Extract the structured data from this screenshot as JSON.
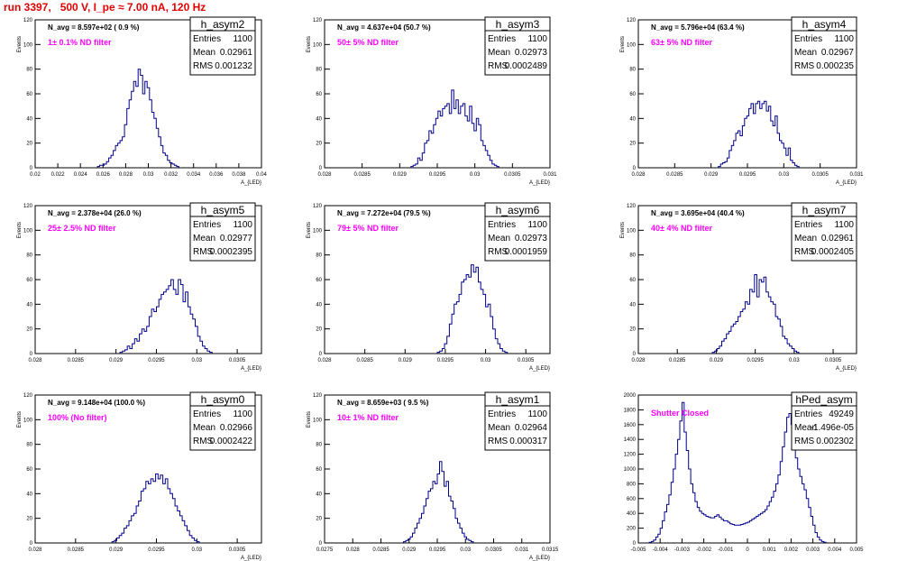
{
  "header": {
    "run_title": "run 3397,   500 V, I_pe ≈ 7.00 nA, 120 Hz"
  },
  "colors": {
    "histogram": "#00008b",
    "note_default": "#ff00ff",
    "note_shutter": "#ff00ff",
    "title": "#e00000"
  },
  "chart_data": [
    {
      "type": "bar",
      "name": "h_asym2",
      "ylabel": "Events",
      "xlabel": "A_{LED}",
      "xlim": [
        0.02,
        0.04
      ],
      "ylim": [
        0,
        120
      ],
      "xticks": [
        "0.02",
        "0.022",
        "0.024",
        "0.026",
        "0.028",
        "0.03",
        "0.032",
        "0.034",
        "0.036",
        "0.038",
        "0.04"
      ],
      "yticks": [
        "0",
        "20",
        "40",
        "60",
        "80",
        "100",
        "120"
      ],
      "navg": "N_avg = 8.597e+02 ( 0.9 %)",
      "note": "1± 0.1% ND filter",
      "stats": {
        "title": "h_asym2",
        "entries": "1100",
        "mean": "0.02961",
        "rms": "0.001232"
      },
      "bins": {
        "x0": 0.0255,
        "w": 0.0002,
        "values": [
          1,
          2,
          2,
          3,
          5,
          8,
          10,
          14,
          18,
          20,
          22,
          25,
          35,
          48,
          55,
          62,
          70,
          66,
          80,
          75,
          60,
          70,
          65,
          55,
          45,
          40,
          32,
          25,
          18,
          12,
          10,
          6,
          4,
          3,
          2,
          1
        ]
      }
    },
    {
      "type": "bar",
      "name": "h_asym3",
      "ylabel": "Events",
      "xlabel": "A_{LED}",
      "xlim": [
        0.028,
        0.031
      ],
      "ylim": [
        0,
        120
      ],
      "xticks": [
        "0.028",
        "0.0285",
        "0.029",
        "0.0295",
        "0.03",
        "0.0305",
        "0.031"
      ],
      "yticks": [
        "0",
        "20",
        "40",
        "60",
        "80",
        "100",
        "120"
      ],
      "navg": "N_avg = 4.637e+04 (50.7 %)",
      "note": "50± 5% ND filter",
      "stats": {
        "title": "h_asym3",
        "entries": "1100",
        "mean": "0.02973",
        "rms": "0.0002489"
      },
      "bins": {
        "x0": 0.02915,
        "w": 3e-05,
        "values": [
          1,
          2,
          3,
          8,
          6,
          12,
          20,
          22,
          30,
          28,
          35,
          40,
          46,
          42,
          48,
          50,
          52,
          44,
          63,
          48,
          55,
          44,
          50,
          52,
          42,
          38,
          50,
          36,
          30,
          40,
          35,
          22,
          18,
          14,
          10,
          6,
          3,
          2,
          1
        ]
      }
    },
    {
      "type": "bar",
      "name": "h_asym4",
      "ylabel": "Events",
      "xlabel": "A_{LED}",
      "xlim": [
        0.028,
        0.031
      ],
      "ylim": [
        0,
        120
      ],
      "xticks": [
        "0.028",
        "0.0285",
        "0.029",
        "0.0295",
        "0.03",
        "0.0305",
        "0.031"
      ],
      "yticks": [
        "0",
        "20",
        "40",
        "60",
        "80",
        "100",
        "120"
      ],
      "navg": "N_avg = 5.796e+04 (63.4 %)",
      "note": "63± 5% ND filter",
      "stats": {
        "title": "h_asym4",
        "entries": "1100",
        "mean": "0.02967",
        "rms": "0.000235"
      },
      "bins": {
        "x0": 0.0291,
        "w": 3e-05,
        "values": [
          1,
          3,
          4,
          5,
          8,
          14,
          18,
          22,
          28,
          30,
          26,
          34,
          40,
          42,
          48,
          52,
          44,
          52,
          54,
          48,
          52,
          54,
          46,
          50,
          38,
          34,
          42,
          28,
          22,
          20,
          16,
          10,
          16,
          6,
          4,
          2,
          1
        ]
      }
    },
    {
      "type": "bar",
      "name": "h_asym5",
      "ylabel": "Events",
      "xlabel": "A_{LED}",
      "xlim": [
        0.028,
        0.0308
      ],
      "ylim": [
        0,
        120
      ],
      "xticks": [
        "0.028",
        "0.0285",
        "0.029",
        "0.0295",
        "0.03",
        "0.0305"
      ],
      "yticks": [
        "0",
        "20",
        "40",
        "60",
        "80",
        "100",
        "120"
      ],
      "navg": "N_avg = 2.378e+04 (26.0 %)",
      "note": "25± 2.5% ND filter",
      "stats": {
        "title": "h_asym5",
        "entries": "1100",
        "mean": "0.02977",
        "rms": "0.0002395"
      },
      "bins": {
        "x0": 0.02905,
        "w": 3e-05,
        "values": [
          1,
          2,
          3,
          6,
          4,
          8,
          12,
          10,
          16,
          20,
          18,
          22,
          30,
          36,
          34,
          38,
          44,
          48,
          50,
          52,
          55,
          60,
          52,
          48,
          60,
          56,
          42,
          50,
          38,
          32,
          28,
          22,
          14,
          10,
          6,
          4,
          2,
          1
        ]
      }
    },
    {
      "type": "bar",
      "name": "h_asym6",
      "ylabel": "Events",
      "xlabel": "A_{LED}",
      "xlim": [
        0.028,
        0.0308
      ],
      "ylim": [
        0,
        120
      ],
      "xticks": [
        "0.028",
        "0.0285",
        "0.029",
        "0.0295",
        "0.03",
        "0.0305"
      ],
      "yticks": [
        "0",
        "20",
        "40",
        "60",
        "80",
        "100",
        "120"
      ],
      "navg": "N_avg = 7.272e+04 (79.5 %)",
      "note": "79± 5% ND filter",
      "stats": {
        "title": "h_asym6",
        "entries": "1100",
        "mean": "0.02973",
        "rms": "0.0001959"
      },
      "bins": {
        "x0": 0.0294,
        "w": 3e-05,
        "values": [
          1,
          2,
          4,
          8,
          14,
          24,
          32,
          40,
          42,
          48,
          58,
          60,
          64,
          62,
          72,
          66,
          70,
          58,
          52,
          48,
          38,
          40,
          30,
          20,
          12,
          8,
          4,
          2,
          1
        ]
      }
    },
    {
      "type": "bar",
      "name": "h_asym7",
      "ylabel": "Events",
      "xlabel": "A_{LED}",
      "xlim": [
        0.028,
        0.0308
      ],
      "ylim": [
        0,
        120
      ],
      "xticks": [
        "0.028",
        "0.0285",
        "0.029",
        "0.0295",
        "0.03",
        "0.0305"
      ],
      "yticks": [
        "0",
        "20",
        "40",
        "60",
        "80",
        "100",
        "120"
      ],
      "navg": "N_avg = 3.695e+04 (40.4 %)",
      "note": "40± 4% ND filter",
      "stats": {
        "title": "h_asym7",
        "entries": "1100",
        "mean": "0.02961",
        "rms": "0.0002405"
      },
      "bins": {
        "x0": 0.02895,
        "w": 3e-05,
        "values": [
          1,
          2,
          4,
          6,
          10,
          12,
          16,
          18,
          22,
          24,
          26,
          30,
          34,
          36,
          42,
          40,
          52,
          50,
          64,
          46,
          60,
          58,
          62,
          50,
          46,
          42,
          40,
          30,
          28,
          22,
          14,
          12,
          8,
          6,
          4,
          2,
          1
        ]
      }
    },
    {
      "type": "bar",
      "name": "h_asym0",
      "ylabel": "Events",
      "xlabel": "A_{LED}",
      "xlim": [
        0.028,
        0.0308
      ],
      "ylim": [
        0,
        120
      ],
      "xticks": [
        "0.028",
        "0.0285",
        "0.029",
        "0.0295",
        "0.03",
        "0.0305"
      ],
      "yticks": [
        "0",
        "20",
        "40",
        "60",
        "80",
        "100",
        "120"
      ],
      "navg": "N_avg = 9.148e+04 (100.0 %)",
      "note": "100% (No filter)",
      "stats": {
        "title": "h_asym0",
        "entries": "1100",
        "mean": "0.02966",
        "rms": "0.0002422"
      },
      "bins": {
        "x0": 0.02895,
        "w": 3e-05,
        "values": [
          1,
          2,
          4,
          6,
          8,
          12,
          14,
          18,
          22,
          24,
          30,
          34,
          42,
          44,
          50,
          48,
          52,
          50,
          56,
          52,
          55,
          48,
          52,
          44,
          40,
          36,
          30,
          26,
          22,
          18,
          14,
          10,
          6,
          4,
          2,
          1
        ]
      }
    },
    {
      "type": "bar",
      "name": "h_asym1",
      "ylabel": "Events",
      "xlabel": "A_{LED}",
      "xlim": [
        0.0275,
        0.0315
      ],
      "ylim": [
        0,
        120
      ],
      "xticks": [
        "0.0275",
        "0.028",
        "0.0285",
        "0.029",
        "0.0295",
        "0.03",
        "0.0305",
        "0.031",
        "0.0315"
      ],
      "yticks": [
        "0",
        "20",
        "40",
        "60",
        "80",
        "100",
        "120"
      ],
      "navg": "N_avg = 8.659e+03 ( 9.5 %)",
      "note": "10± 1% ND filter",
      "stats": {
        "title": "h_asym1",
        "entries": "1100",
        "mean": "0.02964",
        "rms": "0.000317"
      },
      "bins": {
        "x0": 0.0289,
        "w": 4e-05,
        "values": [
          1,
          2,
          3,
          5,
          8,
          12,
          16,
          20,
          24,
          30,
          36,
          42,
          44,
          50,
          48,
          56,
          66,
          58,
          46,
          50,
          38,
          34,
          28,
          20,
          16,
          12,
          8,
          5,
          3,
          2,
          1
        ]
      }
    },
    {
      "type": "bar",
      "name": "hPed_asym",
      "ylabel": "",
      "xlabel": "",
      "xlim": [
        -0.005,
        0.005
      ],
      "ylim": [
        0,
        2000
      ],
      "xticks": [
        "-0.005",
        "-0.004",
        "-0.003",
        "-0.002",
        "-0.001",
        "0",
        "0.001",
        "0.002",
        "0.003",
        "0.004",
        "0.005"
      ],
      "yticks": [
        "0",
        "200",
        "400",
        "600",
        "800",
        "1000",
        "1200",
        "1400",
        "1600",
        "1800",
        "2000"
      ],
      "navg": "",
      "note": "Shutter Closed",
      "stats": {
        "title": "hPed_asym",
        "entries": "49249",
        "mean": "-1.496e-05",
        "rms": "0.002302"
      },
      "bins": {
        "x0": -0.0045,
        "w": 0.0001,
        "values": [
          10,
          20,
          40,
          80,
          120,
          200,
          300,
          420,
          520,
          650,
          820,
          1000,
          1200,
          1400,
          1650,
          1900,
          1500,
          1250,
          1000,
          800,
          680,
          560,
          480,
          430,
          400,
          380,
          360,
          350,
          340,
          340,
          360,
          380,
          350,
          320,
          300,
          300,
          280,
          260,
          250,
          240,
          240,
          240,
          250,
          260,
          270,
          280,
          300,
          320,
          340,
          360,
          380,
          400,
          420,
          450,
          500,
          560,
          620,
          700,
          800,
          920,
          1100,
          1300,
          1500,
          1700,
          1750,
          1600,
          1350,
          1150,
          1000,
          900,
          800,
          720,
          600,
          480,
          360,
          240,
          140,
          80,
          40,
          20,
          10
        ]
      }
    }
  ]
}
